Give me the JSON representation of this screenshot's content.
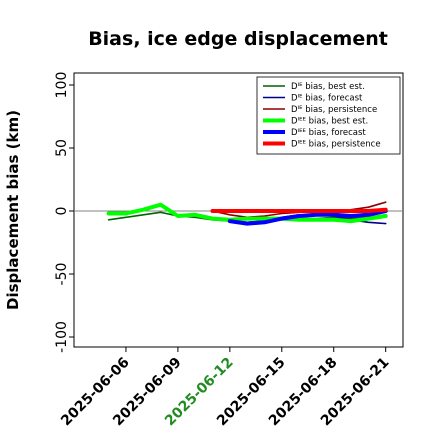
{
  "chart_data": {
    "type": "line",
    "title": "Bias, ice edge displacement",
    "xlabel": "",
    "ylabel": "Displacement bias (km)",
    "ylim": [
      -100,
      100
    ],
    "yticks": [
      -100,
      -50,
      0,
      50,
      100
    ],
    "xlim": [
      "2025-06-03",
      "2025-06-22"
    ],
    "xticks": [
      "2025-06-06",
      "2025-06-09",
      "2025-06-12",
      "2025-06-15",
      "2025-06-18",
      "2025-06-21"
    ],
    "highlight_xtick": "2025-06-12",
    "highlight_color": "#228B22",
    "grid": false,
    "legend_position": "top-right",
    "zero_line": true,
    "series": [
      {
        "name": "Dᴵᴱ bias, best est.",
        "color": "#006400",
        "linewidth": "thin",
        "x": [
          "2025-06-05",
          "2025-06-06",
          "2025-06-07",
          "2025-06-08",
          "2025-06-09",
          "2025-06-10",
          "2025-06-11",
          "2025-06-12",
          "2025-06-13",
          "2025-06-14",
          "2025-06-15",
          "2025-06-16",
          "2025-06-17",
          "2025-06-18",
          "2025-06-19",
          "2025-06-20",
          "2025-06-21"
        ],
        "y": [
          -7,
          -5,
          -3,
          -1,
          -4,
          -5,
          -7,
          -8,
          -9,
          -8,
          -7,
          -6,
          -6,
          -5,
          -6,
          -5,
          -3
        ]
      },
      {
        "name": "Dᴵᴱ bias, forecast",
        "color": "#00008B",
        "linewidth": "thin",
        "x": [
          "2025-06-12",
          "2025-06-13",
          "2025-06-14",
          "2025-06-15",
          "2025-06-16",
          "2025-06-17",
          "2025-06-18",
          "2025-06-19",
          "2025-06-20",
          "2025-06-21"
        ],
        "y": [
          -8,
          -9,
          -8,
          -5,
          -3,
          -3,
          -4,
          -7,
          -9,
          -10
        ]
      },
      {
        "name": "Dᴵᴱ bias, persistence",
        "color": "#8B0000",
        "linewidth": "thin",
        "x": [
          "2025-06-11",
          "2025-06-12",
          "2025-06-13",
          "2025-06-14",
          "2025-06-15",
          "2025-06-16",
          "2025-06-17",
          "2025-06-18",
          "2025-06-19",
          "2025-06-20",
          "2025-06-21"
        ],
        "y": [
          0,
          -3,
          -5,
          -4,
          -2,
          -1,
          0,
          0,
          1,
          3,
          7
        ]
      },
      {
        "name": "Dᴵᴱᴱ bias, best est.",
        "color": "#00FF00",
        "linewidth": "thick",
        "x": [
          "2025-06-05",
          "2025-06-06",
          "2025-06-07",
          "2025-06-08",
          "2025-06-09",
          "2025-06-10",
          "2025-06-11",
          "2025-06-12",
          "2025-06-13",
          "2025-06-14",
          "2025-06-15",
          "2025-06-16",
          "2025-06-17",
          "2025-06-18",
          "2025-06-19",
          "2025-06-20",
          "2025-06-21"
        ],
        "y": [
          -2,
          -2,
          1,
          5,
          -4,
          -3,
          -6,
          -7,
          -6,
          -6,
          -6,
          -7,
          -7,
          -7,
          -8,
          -6,
          -4
        ]
      },
      {
        "name": "Dᴵᴱᴱ bias, forecast",
        "color": "#0000FF",
        "linewidth": "thick",
        "x": [
          "2025-06-12",
          "2025-06-13",
          "2025-06-14",
          "2025-06-15",
          "2025-06-16",
          "2025-06-17",
          "2025-06-18",
          "2025-06-19",
          "2025-06-20",
          "2025-06-21"
        ],
        "y": [
          -8,
          -10,
          -9,
          -6,
          -4,
          -3,
          -3,
          -4,
          -3,
          0
        ]
      },
      {
        "name": "Dᴵᴱᴱ bias, persistence",
        "color": "#FF0000",
        "linewidth": "thick",
        "x": [
          "2025-06-11",
          "2025-06-12",
          "2025-06-13",
          "2025-06-14",
          "2025-06-15",
          "2025-06-16",
          "2025-06-17",
          "2025-06-18",
          "2025-06-19",
          "2025-06-20",
          "2025-06-21"
        ],
        "y": [
          0,
          0,
          0,
          0,
          0,
          0,
          0,
          0,
          0,
          0,
          1
        ]
      }
    ]
  }
}
